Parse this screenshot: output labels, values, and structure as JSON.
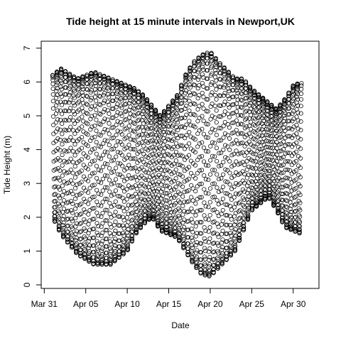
{
  "chart_data": {
    "type": "scatter",
    "title": "Tide height at 15 minute intervals in Newport,UK",
    "xlabel": "Date",
    "ylabel": "Tide Height (m)",
    "x_start": "2019-03-31",
    "x_end": "2019-05-01",
    "x_ticks": [
      {
        "label": "Mar 31",
        "date": "2019-03-31"
      },
      {
        "label": "Apr 05",
        "date": "2019-04-05"
      },
      {
        "label": "Apr 10",
        "date": "2019-04-10"
      },
      {
        "label": "Apr 15",
        "date": "2019-04-15"
      },
      {
        "label": "Apr 20",
        "date": "2019-04-20"
      },
      {
        "label": "Apr 25",
        "date": "2019-04-25"
      },
      {
        "label": "Apr 30",
        "date": "2019-04-30"
      }
    ],
    "y_ticks": [
      0,
      1,
      2,
      3,
      4,
      5,
      6,
      7
    ],
    "ylim": [
      0,
      7
    ],
    "sampling_interval_minutes": 15,
    "grid": false,
    "marker": "open-circle",
    "envelope": [
      {
        "date": "2019-04-01",
        "high": 6.2,
        "low": 2.0
      },
      {
        "date": "2019-04-02",
        "high": 6.4,
        "low": 1.5
      },
      {
        "date": "2019-04-04",
        "high": 6.1,
        "low": 0.9
      },
      {
        "date": "2019-04-06",
        "high": 6.3,
        "low": 0.6
      },
      {
        "date": "2019-04-08",
        "high": 6.1,
        "low": 0.6
      },
      {
        "date": "2019-04-10",
        "high": 5.9,
        "low": 1.0
      },
      {
        "date": "2019-04-11",
        "high": 5.8,
        "low": 1.5
      },
      {
        "date": "2019-04-12",
        "high": 5.6,
        "low": 1.8
      },
      {
        "date": "2019-04-13",
        "high": 5.3,
        "low": 2.0
      },
      {
        "date": "2019-04-14",
        "high": 5.0,
        "low": 1.6
      },
      {
        "date": "2019-04-16",
        "high": 5.6,
        "low": 1.4
      },
      {
        "date": "2019-04-17",
        "high": 6.2,
        "low": 1.0
      },
      {
        "date": "2019-04-18",
        "high": 6.6,
        "low": 0.6
      },
      {
        "date": "2019-04-19",
        "high": 6.8,
        "low": 0.3
      },
      {
        "date": "2019-04-20",
        "high": 6.9,
        "low": 0.25
      },
      {
        "date": "2019-04-21",
        "high": 6.6,
        "low": 0.5
      },
      {
        "date": "2019-04-23",
        "high": 6.1,
        "low": 1.0
      },
      {
        "date": "2019-04-24",
        "high": 6.1,
        "low": 1.6
      },
      {
        "date": "2019-04-25",
        "high": 5.8,
        "low": 2.2
      },
      {
        "date": "2019-04-27",
        "high": 5.4,
        "low": 2.6
      },
      {
        "date": "2019-04-28",
        "high": 5.2,
        "low": 2.2
      },
      {
        "date": "2019-04-29",
        "high": 5.5,
        "low": 1.7
      },
      {
        "date": "2019-04-30",
        "high": 5.9,
        "low": 1.6
      },
      {
        "date": "2019-05-01",
        "high": 6.0,
        "low": 1.5
      }
    ]
  }
}
